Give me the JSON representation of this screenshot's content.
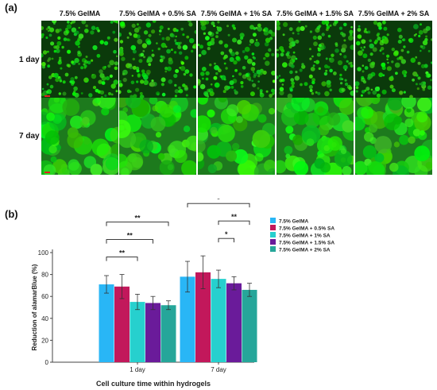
{
  "panel_a": {
    "label": "(a)",
    "columns": [
      "7.5% GelMA",
      "7.5% GelMA + 0.5% SA",
      "7.5% GelMA + 1% SA",
      "7.5% GelMA + 1.5% SA",
      "7.5% GelMA + 2% SA"
    ],
    "rows": [
      "1 day",
      "7 day"
    ]
  },
  "panel_b": {
    "label": "(b)"
  },
  "chart_data": {
    "type": "bar",
    "title": "",
    "xlabel": "Cell culture time within hydrogels",
    "ylabel": "Reduction of alamarBlue (%)",
    "ylim": [
      0,
      100
    ],
    "yticks": [
      0,
      20,
      40,
      60,
      80,
      100
    ],
    "grid": false,
    "legend_position": "right",
    "categories": [
      "1 day",
      "7 day"
    ],
    "series": [
      {
        "name": "7.5% GelMA",
        "color": "#29b6f6",
        "values": [
          71,
          78
        ],
        "errors": [
          8,
          14
        ]
      },
      {
        "name": "7.5% GelMA + 0.5% SA",
        "color": "#c2185b",
        "values": [
          69,
          82
        ],
        "errors": [
          11,
          15
        ]
      },
      {
        "name": "7.5% GelMA + 1% SA",
        "color": "#26d0ce",
        "values": [
          55,
          76
        ],
        "errors": [
          7,
          8
        ]
      },
      {
        "name": "7.5% GelMA + 1.5% SA",
        "color": "#6a1b9a",
        "values": [
          54,
          72
        ],
        "errors": [
          6,
          6
        ]
      },
      {
        "name": "7.5% GelMA + 2% SA",
        "color": "#26a69a",
        "values": [
          52,
          66
        ],
        "errors": [
          4,
          6
        ]
      }
    ],
    "significance": [
      {
        "category": 0,
        "from_series": 0,
        "to_series": 4,
        "label": "**",
        "level": 3
      },
      {
        "category": 0,
        "from_series": 0,
        "to_series": 3,
        "label": "**",
        "level": 2
      },
      {
        "category": 0,
        "from_series": 0,
        "to_series": 2,
        "label": "**",
        "level": 1
      },
      {
        "category": 1,
        "from_series": 0,
        "to_series": 4,
        "label": "*",
        "level": 3
      },
      {
        "category": 1,
        "from_series": 2,
        "to_series": 4,
        "label": "**",
        "level": 2
      },
      {
        "category": 1,
        "from_series": 2,
        "to_series": 3,
        "label": "*",
        "level": 1
      }
    ]
  }
}
